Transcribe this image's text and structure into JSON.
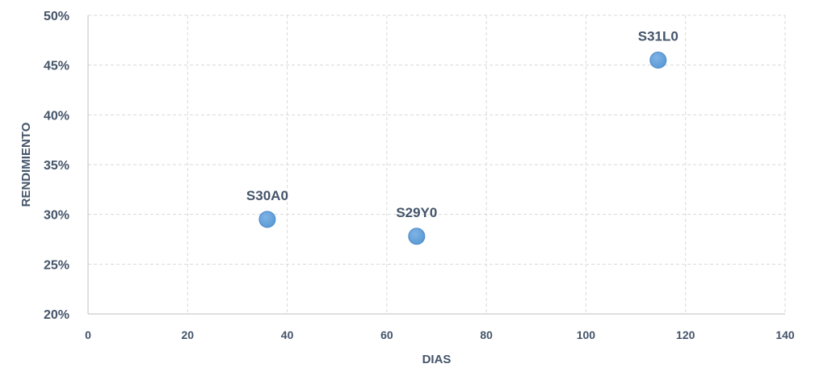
{
  "chart_data": {
    "type": "scatter",
    "title": "",
    "xlabel": "DIAS",
    "ylabel": "RENDIMIENTO",
    "xlim": [
      0,
      140
    ],
    "ylim": [
      0.2,
      0.5
    ],
    "x_ticks": [
      0,
      20,
      40,
      60,
      80,
      100,
      120,
      140
    ],
    "y_ticks": [
      0.2,
      0.25,
      0.3,
      0.35,
      0.4,
      0.45,
      0.5
    ],
    "x_tick_labels": [
      "0",
      "20",
      "40",
      "60",
      "80",
      "100",
      "120",
      "140"
    ],
    "y_tick_labels": [
      "20%",
      "25%",
      "30%",
      "35%",
      "40%",
      "45%",
      "50%"
    ],
    "grid": true,
    "legend": "none",
    "points": [
      {
        "label": "S30A0",
        "x": 36,
        "y": 0.295
      },
      {
        "label": "S29Y0",
        "x": 66,
        "y": 0.278
      },
      {
        "label": "S31L0",
        "x": 114.5,
        "y": 0.455
      }
    ],
    "colors": {
      "marker": "#5b9bd5",
      "marker_edge": "#4a88c7",
      "text": "#44546a",
      "grid": "#d9d9d9",
      "axis": "#bfbfbf"
    }
  }
}
